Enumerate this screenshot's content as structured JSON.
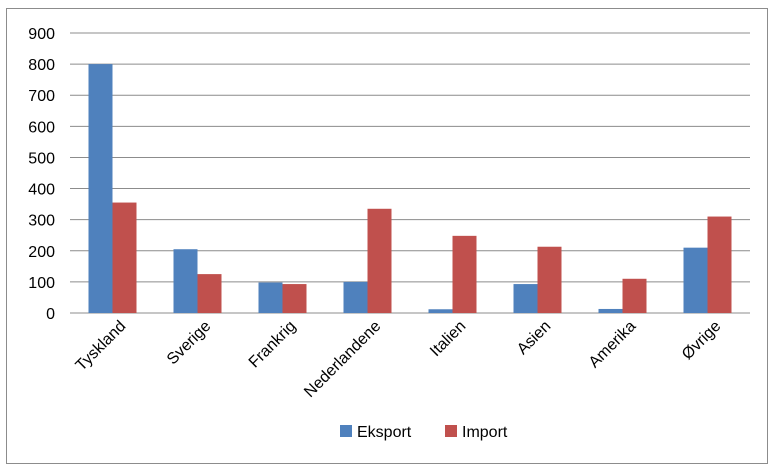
{
  "chart_data": {
    "type": "bar",
    "categories": [
      "Tyskland",
      "Sverige",
      "Frankrig",
      "Nederlandene",
      "Italien",
      "Asien",
      "Amerika",
      "Øvrige"
    ],
    "series": [
      {
        "name": "Eksport",
        "color": "#4F81BD",
        "values": [
          800,
          205,
          98,
          100,
          12,
          93,
          13,
          210
        ]
      },
      {
        "name": "Import",
        "color": "#C0504D",
        "values": [
          355,
          125,
          93,
          335,
          248,
          213,
          110,
          310
        ]
      }
    ],
    "ylim": [
      0,
      900
    ],
    "yticks": [
      0,
      100,
      200,
      300,
      400,
      500,
      600,
      700,
      800,
      900
    ],
    "grid": true,
    "legend": "bottom",
    "title": "",
    "xlabel": "",
    "ylabel": ""
  }
}
